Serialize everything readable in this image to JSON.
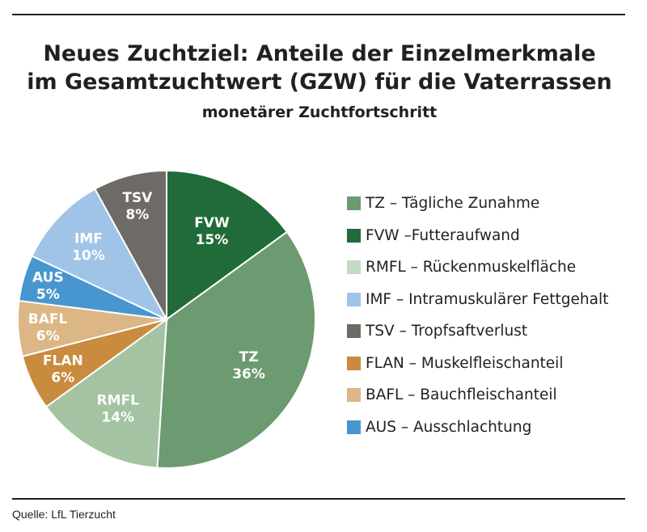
{
  "header": {
    "title_line1": "Neues Zuchtziel: Anteile der Einzelmerkmale",
    "title_line2": "im Gesamtzuchtwert (GZW) für die Vaterrassen",
    "subtitle": "monetärer Zuchtfortschritt"
  },
  "footer": {
    "source": "Quelle: LfL Tierzucht"
  },
  "chart_data": {
    "type": "pie",
    "title": "Neues Zuchtziel: Anteile der Einzelmerkmale im Gesamtzuchtwert (GZW) für die Vaterrassen",
    "subtitle": "monetärer Zuchtfortschritt",
    "unit": "%",
    "start_angle_deg": 0,
    "direction": "clockwise",
    "legend_position": "right",
    "slices": [
      {
        "key": "FVW",
        "label": "FVW",
        "value": 15,
        "value_label": "15%",
        "color": "#216b3b",
        "text_color": "#ffffff"
      },
      {
        "key": "TZ",
        "label": "TZ",
        "value": 36,
        "value_label": "36%",
        "color": "#6c9a71",
        "text_color": "#ffffff"
      },
      {
        "key": "RMFL",
        "label": "RMFL",
        "value": 14,
        "value_label": "14%",
        "color": "#a3c3a3",
        "text_color": "#ffffff"
      },
      {
        "key": "FLAN",
        "label": "FLAN",
        "value": 6,
        "value_label": "6%",
        "color": "#c98b3d",
        "text_color": "#ffffff"
      },
      {
        "key": "BAFL",
        "label": "BAFL",
        "value": 6,
        "value_label": "6%",
        "color": "#dcb684",
        "text_color": "#ffffff"
      },
      {
        "key": "AUS",
        "label": "AUS",
        "value": 5,
        "value_label": "5%",
        "color": "#4896d0",
        "text_color": "#ffffff"
      },
      {
        "key": "IMF",
        "label": "IMF",
        "value": 10,
        "value_label": "10%",
        "color": "#9fc4e8",
        "text_color": "#ffffff"
      },
      {
        "key": "TSV",
        "label": "TSV",
        "value": 8,
        "value_label": "8%",
        "color": "#6e6b66",
        "text_color": "#ffffff"
      }
    ],
    "legend": [
      {
        "key": "TZ",
        "text": "TZ – Tägliche Zunahme",
        "color": "#6c9a71"
      },
      {
        "key": "FVW",
        "text": "FVW –Futteraufwand",
        "color": "#216b3b"
      },
      {
        "key": "RMFL",
        "text": "RMFL – Rückenmuskelfläche",
        "color": "#c2dbc3"
      },
      {
        "key": "IMF",
        "text": "IMF – Intramuskulärer Fettgehalt",
        "color": "#9fc4e8"
      },
      {
        "key": "TSV",
        "text": "TSV – Tropfsaftverlust",
        "color": "#6e6b66"
      },
      {
        "key": "FLAN",
        "text": "FLAN – Muskelfleischanteil",
        "color": "#c98b3d"
      },
      {
        "key": "BAFL",
        "text": "BAFL – Bauchfleischanteil",
        "color": "#dcb684"
      },
      {
        "key": "AUS",
        "text": "AUS – Ausschlachtung",
        "color": "#4896d0"
      }
    ]
  }
}
